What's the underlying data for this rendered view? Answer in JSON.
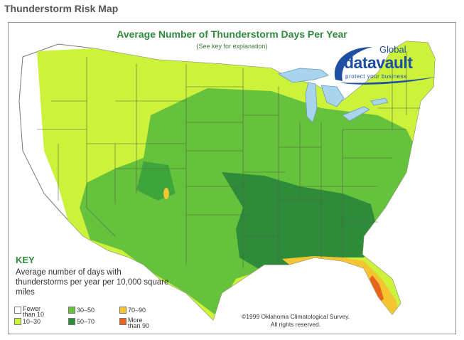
{
  "page_title": "Thunderstorm Risk Map",
  "map": {
    "title": "Average Number of Thunderstorm Days Per Year",
    "subtitle": "(See key for explanation)"
  },
  "logo": {
    "line1": "Global",
    "line2": "datavault",
    "tagline": "protect your business"
  },
  "key": {
    "title": "KEY",
    "description": "Average number of days with thunderstorms per year per 10,000 square miles",
    "items": [
      {
        "label": "Fewer than 10",
        "color": "#ffffff"
      },
      {
        "label": "10–30",
        "color": "#ccf23c"
      },
      {
        "label": "30–50",
        "color": "#66c23c"
      },
      {
        "label": "50–70",
        "color": "#2e8b3a"
      },
      {
        "label": "70–90",
        "color": "#f5c431"
      },
      {
        "label": "More than 90",
        "color": "#e8641e"
      }
    ]
  },
  "copyright": {
    "line1": "©1999 Oklahoma Climatological Survey.",
    "line2": "All rights reserved."
  },
  "colors": {
    "lake": "#a8d4ee",
    "border": "#4a6a3a"
  }
}
